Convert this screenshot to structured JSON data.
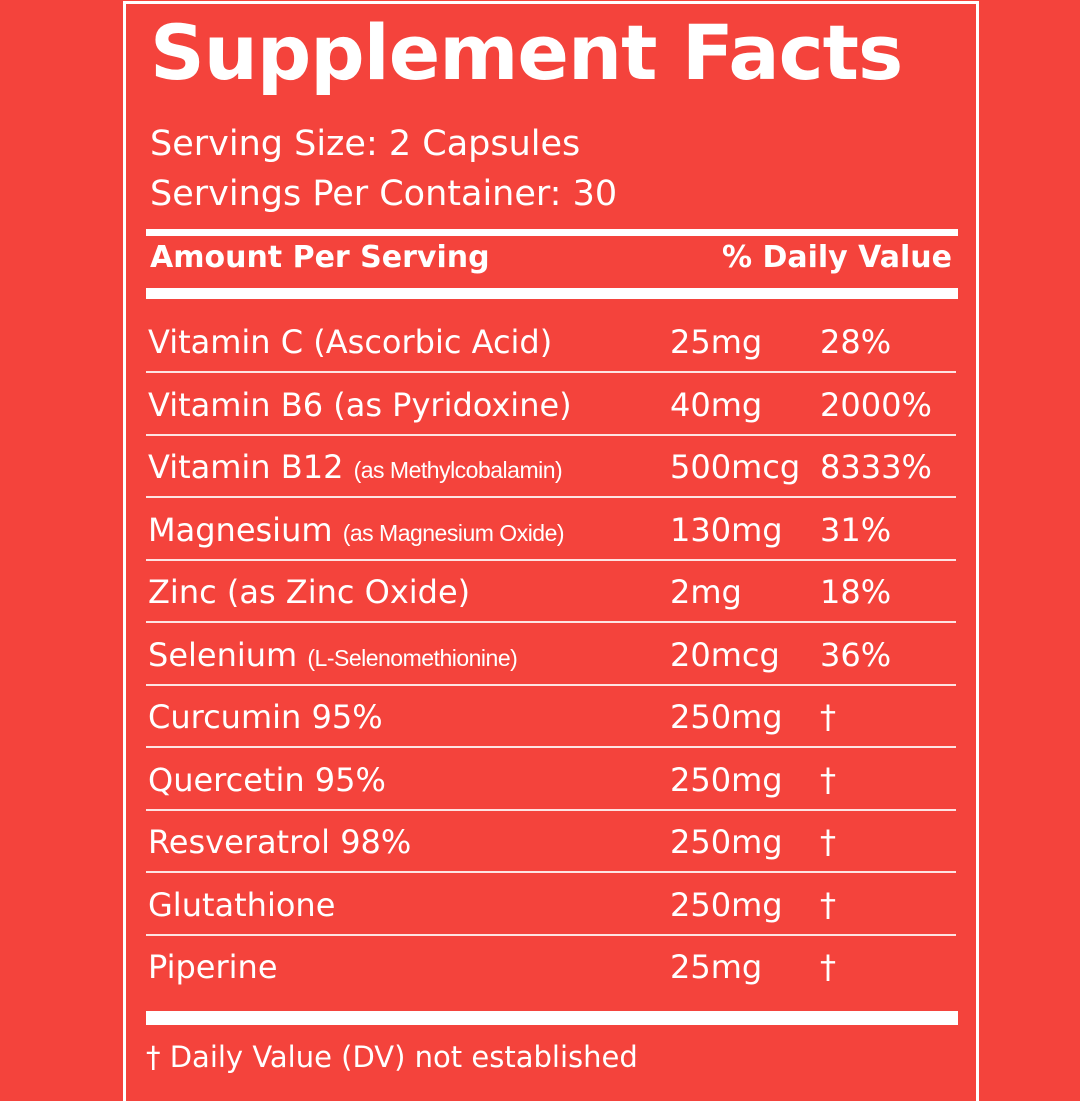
{
  "title": "Supplement Facts",
  "serving_size": "Serving Size: 2  Capsules",
  "servings_per_container": "Servings Per Container: 30",
  "header": {
    "amount": "Amount Per Serving",
    "daily_value": "% Daily Value"
  },
  "rows": [
    {
      "name": "Vitamin C (Ascorbic Acid)",
      "detail": "",
      "amount": "25mg",
      "dv": "28%"
    },
    {
      "name": "Vitamin B6 (as Pyridoxine)",
      "detail": "",
      "amount": "40mg",
      "dv": "2000%"
    },
    {
      "name": "Vitamin B12",
      "detail": "(as Methylcobalamin)",
      "amount": "500mcg",
      "dv": "8333%"
    },
    {
      "name": "Magnesium",
      "detail": "(as Magnesium Oxide)",
      "amount": "130mg",
      "dv": "31%"
    },
    {
      "name": "Zinc (as Zinc Oxide)",
      "detail": "",
      "amount": "2mg",
      "dv": "18%"
    },
    {
      "name": "Selenium",
      "detail": "(L-Selenomethionine)",
      "amount": "20mcg",
      "dv": "36%"
    },
    {
      "name": "Curcumin 95%",
      "detail": "",
      "amount": "250mg",
      "dv": "†"
    },
    {
      "name": "Quercetin 95%",
      "detail": "",
      "amount": "250mg",
      "dv": "†"
    },
    {
      "name": "Resveratrol 98%",
      "detail": "",
      "amount": "250mg",
      "dv": "†"
    },
    {
      "name": "Glutathione",
      "detail": "",
      "amount": "250mg",
      "dv": "†"
    },
    {
      "name": "Piperine",
      "detail": "",
      "amount": "25mg",
      "dv": "†"
    }
  ],
  "footnote": "† Daily Value (DV) not established",
  "colors": {
    "background": "#f4433c",
    "foreground": "#ffffff"
  }
}
